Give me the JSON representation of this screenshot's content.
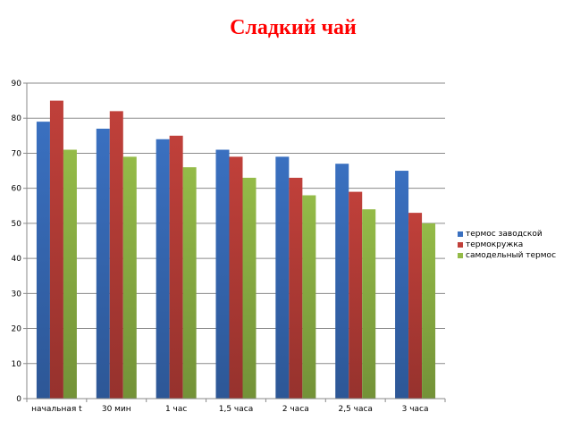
{
  "chart_data": {
    "type": "bar",
    "title": "Сладкий чай",
    "categories": [
      "начальная t",
      "30 мин",
      "1 час",
      "1,5 часа",
      "2 часа",
      "2,5 часа",
      "3 часа"
    ],
    "series": [
      {
        "name": "термос заводской",
        "values": [
          79,
          77,
          74,
          71,
          69,
          67,
          65
        ],
        "color": "#3a70c0"
      },
      {
        "name": "термокружка",
        "values": [
          85,
          82,
          75,
          69,
          63,
          59,
          53
        ],
        "color": "#c0403a"
      },
      {
        "name": "самодельный термос",
        "values": [
          71,
          69,
          66,
          63,
          58,
          54,
          50
        ],
        "color": "#94bb48"
      }
    ],
    "xlabel": "",
    "ylabel": "",
    "ylim": [
      0,
      90
    ],
    "yticks": [
      0,
      10,
      20,
      30,
      40,
      50,
      60,
      70,
      80,
      90
    ],
    "grid": true,
    "legend_position": "right"
  }
}
